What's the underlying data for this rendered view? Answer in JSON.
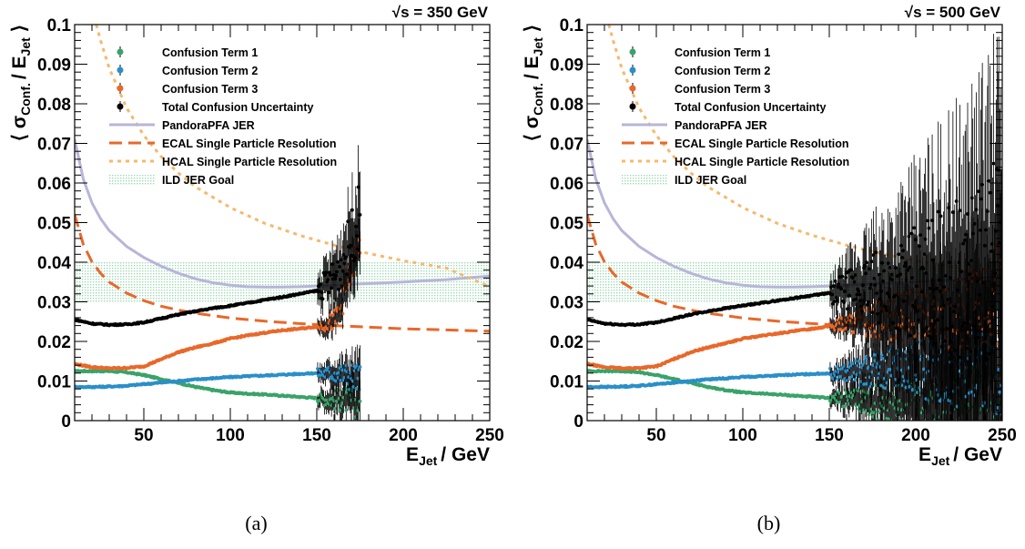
{
  "chart_data": [
    {
      "type": "scatter",
      "energy_label": "√s = 350 GeV",
      "xlabel_main": "E",
      "xlabel_sub": "Jet",
      "xlabel_unit": "/ GeV",
      "ylabel_main": "⟨ σ",
      "ylabel_sub1": "Conf.",
      "ylabel_mid": "/ E",
      "ylabel_sub2": "Jet",
      "ylabel_end": "⟩",
      "xlim": [
        10,
        250
      ],
      "ylim": [
        0,
        0.1
      ],
      "x_ticks": [
        "50",
        "100",
        "150",
        "200",
        "250"
      ],
      "y_ticks": [
        "0",
        "0.01",
        "0.02",
        "0.03",
        "0.04",
        "0.05",
        "0.06",
        "0.07",
        "0.08",
        "0.09",
        "0.1"
      ],
      "caption": "(a)",
      "band": {
        "name": "ILD JER Goal",
        "y_range": [
          0.03,
          0.04
        ],
        "color": "#9fd9b5"
      },
      "series": [
        {
          "name": "Confusion Term 1",
          "kind": "points",
          "color": "#3aa36a",
          "x": [
            10,
            20,
            30,
            40,
            50,
            60,
            70,
            80,
            90,
            100,
            110,
            120,
            130,
            140,
            150,
            160,
            170,
            175
          ],
          "y": [
            0.0125,
            0.0125,
            0.0125,
            0.0122,
            0.0115,
            0.0105,
            0.0095,
            0.0085,
            0.0077,
            0.0071,
            0.0068,
            0.0066,
            0.0063,
            0.006,
            0.0057,
            0.0053,
            0.005,
            0.0045
          ]
        },
        {
          "name": "Confusion Term 2",
          "kind": "points",
          "color": "#2a8fc9",
          "x": [
            10,
            20,
            30,
            40,
            50,
            60,
            70,
            80,
            90,
            100,
            110,
            120,
            130,
            140,
            150,
            160,
            170,
            175
          ],
          "y": [
            0.0085,
            0.0085,
            0.0086,
            0.0088,
            0.0092,
            0.0096,
            0.01,
            0.0104,
            0.0107,
            0.011,
            0.0112,
            0.0114,
            0.0116,
            0.0118,
            0.012,
            0.012,
            0.0112,
            0.0105
          ]
        },
        {
          "name": "Confusion Term 3",
          "kind": "points",
          "color": "#e8682a",
          "x": [
            10,
            20,
            30,
            40,
            50,
            60,
            70,
            80,
            90,
            100,
            110,
            120,
            130,
            140,
            150,
            160,
            165,
            170,
            175
          ],
          "y": [
            0.0143,
            0.0135,
            0.0132,
            0.0133,
            0.0137,
            0.0155,
            0.0173,
            0.0185,
            0.0195,
            0.0207,
            0.0215,
            0.0222,
            0.0228,
            0.0232,
            0.0237,
            0.025,
            0.03,
            0.038,
            0.045
          ]
        },
        {
          "name": "Total Confusion Uncertainty",
          "kind": "points",
          "color": "#000000",
          "x": [
            10,
            20,
            30,
            40,
            50,
            60,
            70,
            80,
            90,
            100,
            110,
            120,
            130,
            140,
            150,
            160,
            165,
            170,
            175
          ],
          "y": [
            0.0255,
            0.0245,
            0.0242,
            0.0243,
            0.0248,
            0.0258,
            0.0268,
            0.0276,
            0.0284,
            0.029,
            0.0297,
            0.0305,
            0.0312,
            0.032,
            0.0328,
            0.036,
            0.04,
            0.046,
            0.052
          ]
        },
        {
          "name": "PandoraPFA JER",
          "kind": "line",
          "dash": "",
          "color": "#b7b5d8",
          "width": 3,
          "x": [
            10,
            15,
            20,
            25,
            30,
            40,
            50,
            60,
            70,
            80,
            90,
            100,
            110,
            120,
            130,
            140,
            150,
            175,
            200,
            225,
            250
          ],
          "y": [
            0.071,
            0.061,
            0.055,
            0.051,
            0.048,
            0.044,
            0.0412,
            0.039,
            0.0372,
            0.0358,
            0.0348,
            0.0342,
            0.0338,
            0.0337,
            0.0337,
            0.0338,
            0.034,
            0.0345,
            0.035,
            0.0356,
            0.0365
          ]
        },
        {
          "name": "ECAL Single Particle Resolution",
          "kind": "line",
          "dash": "14 7",
          "color": "#e8682a",
          "width": 3,
          "x": [
            10,
            15,
            20,
            25,
            30,
            40,
            50,
            60,
            70,
            80,
            100,
            120,
            140,
            160,
            180,
            200,
            225,
            250
          ],
          "y": [
            0.052,
            0.0445,
            0.0401,
            0.0372,
            0.035,
            0.0322,
            0.0303,
            0.0289,
            0.0279,
            0.0271,
            0.0259,
            0.0251,
            0.0245,
            0.024,
            0.0236,
            0.0232,
            0.0229,
            0.0226
          ]
        },
        {
          "name": "HCAL Single Particle Resolution",
          "kind": "line",
          "dash": "4 5",
          "color": "#f7b86a",
          "width": 3,
          "x": [
            20,
            25,
            30,
            40,
            50,
            60,
            70,
            80,
            100,
            120,
            140,
            160,
            180,
            200,
            225,
            250
          ],
          "y": [
            0.104,
            0.096,
            0.089,
            0.079,
            0.072,
            0.0667,
            0.0625,
            0.059,
            0.0538,
            0.0498,
            0.0468,
            0.0443,
            0.0422,
            0.0404,
            0.0385,
            0.0338
          ]
        }
      ]
    },
    {
      "type": "scatter",
      "energy_label": "√s = 500 GeV",
      "xlabel_main": "E",
      "xlabel_sub": "Jet",
      "xlabel_unit": "/ GeV",
      "ylabel_main": "⟨ σ",
      "ylabel_sub1": "Conf.",
      "ylabel_mid": "/ E",
      "ylabel_sub2": "Jet",
      "ylabel_end": "⟩",
      "xlim": [
        10,
        250
      ],
      "ylim": [
        0,
        0.1
      ],
      "x_ticks": [
        "50",
        "100",
        "150",
        "200",
        "250"
      ],
      "y_ticks": [
        "0",
        "0.01",
        "0.02",
        "0.03",
        "0.04",
        "0.05",
        "0.06",
        "0.07",
        "0.08",
        "0.09",
        "0.1"
      ],
      "caption": "(b)",
      "band": {
        "name": "ILD JER Goal",
        "y_range": [
          0.03,
          0.04
        ],
        "color": "#9fd9b5"
      },
      "series": [
        {
          "name": "Confusion Term 1",
          "kind": "points",
          "color": "#3aa36a",
          "x": [
            10,
            20,
            30,
            40,
            50,
            60,
            70,
            80,
            90,
            100,
            120,
            140,
            160,
            180,
            200,
            220,
            240,
            250
          ],
          "y": [
            0.0125,
            0.0125,
            0.0125,
            0.0122,
            0.0115,
            0.0105,
            0.0095,
            0.0085,
            0.0077,
            0.0071,
            0.0066,
            0.006,
            0.0054,
            0.0047,
            0.004,
            0.0032,
            0.0024,
            0.002
          ]
        },
        {
          "name": "Confusion Term 2",
          "kind": "points",
          "color": "#2a8fc9",
          "x": [
            10,
            20,
            30,
            40,
            50,
            60,
            70,
            80,
            90,
            100,
            120,
            140,
            160,
            180,
            200,
            220,
            240,
            250
          ],
          "y": [
            0.0085,
            0.0085,
            0.0086,
            0.0088,
            0.0092,
            0.0096,
            0.01,
            0.0104,
            0.0107,
            0.011,
            0.0114,
            0.0118,
            0.0121,
            0.0125,
            0.0128,
            0.0132,
            0.0138,
            0.0135
          ]
        },
        {
          "name": "Confusion Term 3",
          "kind": "points",
          "color": "#e8682a",
          "x": [
            10,
            20,
            30,
            40,
            50,
            60,
            70,
            80,
            90,
            100,
            120,
            140,
            160,
            180,
            200,
            220,
            240,
            250
          ],
          "y": [
            0.0143,
            0.0135,
            0.0132,
            0.0133,
            0.0137,
            0.0155,
            0.0173,
            0.0185,
            0.0195,
            0.0207,
            0.022,
            0.0232,
            0.0245,
            0.0257,
            0.0266,
            0.0275,
            0.029,
            0.033
          ]
        },
        {
          "name": "Total Confusion Uncertainty",
          "kind": "points",
          "color": "#000000",
          "x": [
            10,
            20,
            30,
            40,
            50,
            60,
            70,
            80,
            90,
            100,
            120,
            140,
            160,
            180,
            200,
            220,
            240,
            250
          ],
          "y": [
            0.0255,
            0.0245,
            0.0242,
            0.0243,
            0.0248,
            0.0258,
            0.0268,
            0.0276,
            0.0284,
            0.029,
            0.0303,
            0.0316,
            0.0328,
            0.034,
            0.035,
            0.0358,
            0.0385,
            0.042
          ]
        },
        {
          "name": "PandoraPFA JER",
          "kind": "line",
          "dash": "",
          "color": "#b7b5d8",
          "width": 3,
          "x": [
            10,
            15,
            20,
            25,
            30,
            40,
            50,
            60,
            70,
            80,
            90,
            100,
            110,
            120,
            130,
            140,
            150,
            175,
            200,
            225,
            250
          ],
          "y": [
            0.071,
            0.061,
            0.055,
            0.051,
            0.048,
            0.044,
            0.0412,
            0.039,
            0.0372,
            0.0358,
            0.0348,
            0.0342,
            0.0338,
            0.0337,
            0.0337,
            0.0338,
            0.034,
            0.0345,
            0.035,
            0.0356,
            0.0365
          ]
        },
        {
          "name": "ECAL Single Particle Resolution",
          "kind": "line",
          "dash": "14 7",
          "color": "#e8682a",
          "width": 3,
          "x": [
            10,
            15,
            20,
            25,
            30,
            40,
            50,
            60,
            70,
            80,
            100,
            120,
            140,
            160,
            180,
            200,
            225,
            250
          ],
          "y": [
            0.052,
            0.0445,
            0.0401,
            0.0372,
            0.035,
            0.0322,
            0.0303,
            0.0289,
            0.0279,
            0.0271,
            0.0259,
            0.0251,
            0.0245,
            0.024,
            0.0236,
            0.0232,
            0.0229,
            0.0226
          ]
        },
        {
          "name": "HCAL Single Particle Resolution",
          "kind": "line",
          "dash": "4 5",
          "color": "#f7b86a",
          "width": 3,
          "x": [
            20,
            25,
            30,
            40,
            50,
            60,
            70,
            80,
            100,
            120,
            140,
            160,
            180,
            200,
            225,
            250
          ],
          "y": [
            0.104,
            0.096,
            0.089,
            0.079,
            0.072,
            0.0667,
            0.0625,
            0.059,
            0.0538,
            0.0498,
            0.0468,
            0.0443,
            0.0422,
            0.0404,
            0.0385,
            0.0338
          ]
        }
      ]
    }
  ]
}
